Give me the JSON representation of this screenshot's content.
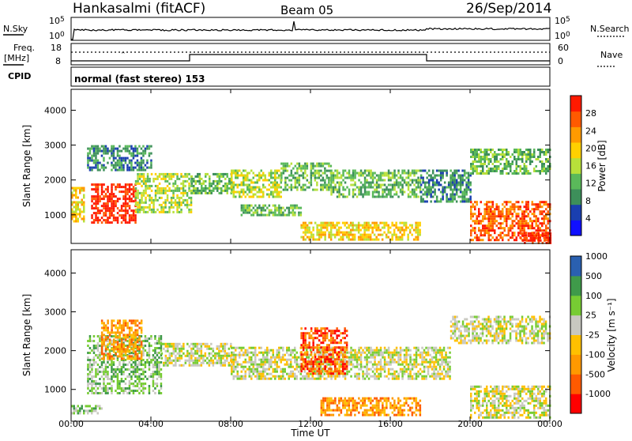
{
  "header": {
    "station": "Hankasalmi (fitACF)",
    "beam": "Beam 05",
    "date": "26/Sep/2014"
  },
  "strip_labels": {
    "nsky": "N.Sky",
    "nsearch": "N.Search",
    "freq_line1": "Freq.",
    "freq_line2": "[MHz]",
    "nave": "Nave",
    "cpid": "CPID",
    "nsky_tick_top": "10^5",
    "nsky_tick_bottom": "10^0",
    "freq_tick_top": "18",
    "freq_tick_bottom": "8",
    "nave_tick_top": "60",
    "nave_tick_bottom": "0",
    "cpid_text": "normal (fast stereo) 153"
  },
  "colors": {
    "power_scale": [
      "#1010ff",
      "#1a3fb0",
      "#3d8f5a",
      "#5ab95a",
      "#b8e03a",
      "#ffd000",
      "#ff9a00",
      "#ff5a00",
      "#ff1a00"
    ],
    "velocity_scale": [
      "#ff0000",
      "#ff5a00",
      "#ff9900",
      "#ffc000",
      "#c8c8c0",
      "#77cc33",
      "#3f9a4a",
      "#2a60b0"
    ],
    "velocity_gray": "#c8c8c0"
  },
  "chart_data": [
    {
      "type": "heatmap",
      "name": "power",
      "ylabel": "Slant Range [km]",
      "xlabel": "Time UT",
      "x_ticks": [
        "00:00",
        "04:00",
        "08:00",
        "12:00",
        "16:00",
        "20:00",
        "00:00"
      ],
      "y_ticks": [
        "1000",
        "2000",
        "3000",
        "4000"
      ],
      "xlim": [
        0,
        24
      ],
      "ylim": [
        180,
        4600
      ],
      "colorbar_label": "Power [dB]",
      "colorbar_ticks": [
        "4",
        "8",
        "12",
        "16",
        "20",
        "24",
        "28"
      ],
      "regions": [
        {
          "t0": 0.0,
          "t1": 0.6,
          "r0": 800,
          "r1": 1800,
          "level": 5
        },
        {
          "t0": 1.0,
          "t1": 3.2,
          "r0": 750,
          "r1": 1900,
          "level": 8
        },
        {
          "t0": 3.2,
          "t1": 6.0,
          "r0": 1100,
          "r1": 2200,
          "level": 4
        },
        {
          "t0": 0.8,
          "t1": 4.0,
          "r0": 2300,
          "r1": 3000,
          "level": 2
        },
        {
          "t0": 6.0,
          "t1": 8.0,
          "r0": 1600,
          "r1": 2200,
          "level": 3
        },
        {
          "t0": 8.0,
          "t1": 10.5,
          "r0": 1500,
          "r1": 2300,
          "level": 4
        },
        {
          "t0": 10.5,
          "t1": 13.0,
          "r0": 1700,
          "r1": 2500,
          "level": 3
        },
        {
          "t0": 13.0,
          "t1": 17.5,
          "r0": 1500,
          "r1": 2300,
          "level": 3
        },
        {
          "t0": 17.5,
          "t1": 20.0,
          "r0": 1400,
          "r1": 2300,
          "level": 2
        },
        {
          "t0": 20.0,
          "t1": 24.0,
          "r0": 2200,
          "r1": 2900,
          "level": 3
        },
        {
          "t0": 8.5,
          "t1": 11.5,
          "r0": 1000,
          "r1": 1300,
          "level": 3
        },
        {
          "t0": 11.5,
          "t1": 17.5,
          "r0": 300,
          "r1": 800,
          "level": 5
        },
        {
          "t0": 20.0,
          "t1": 24.0,
          "r0": 250,
          "r1": 1400,
          "level": 7
        },
        {
          "t0": 22.5,
          "t1": 24.0,
          "r0": 200,
          "r1": 500,
          "level": 8
        }
      ]
    },
    {
      "type": "heatmap",
      "name": "velocity",
      "ylabel": "Slant Range [km]",
      "xlabel": "Time UT",
      "x_ticks": [
        "00:00",
        "04:00",
        "08:00",
        "12:00",
        "16:00",
        "20:00",
        "00:00"
      ],
      "y_ticks": [
        "1000",
        "2000",
        "3000",
        "4000"
      ],
      "xlim": [
        0,
        24
      ],
      "ylim": [
        180,
        4600
      ],
      "colorbar_label": "Velocity  [m s⁻¹]",
      "colorbar_ticks": [
        "-1000",
        "-500",
        "-100",
        "-25",
        "25",
        "100",
        "500",
        "1000"
      ],
      "regions": [
        {
          "t0": 0.8,
          "t1": 4.5,
          "r0": 900,
          "r1": 2400,
          "level": 5
        },
        {
          "t0": 1.5,
          "t1": 3.5,
          "r0": 1800,
          "r1": 2800,
          "level": 2
        },
        {
          "t0": 4.5,
          "t1": 8.0,
          "r0": 1600,
          "r1": 2200,
          "level": 4
        },
        {
          "t0": 8.0,
          "t1": 13.0,
          "r0": 1300,
          "r1": 2100,
          "level": 4
        },
        {
          "t0": 13.0,
          "t1": 19.0,
          "r0": 1300,
          "r1": 2100,
          "level": 4
        },
        {
          "t0": 19.0,
          "t1": 24.0,
          "r0": 2200,
          "r1": 2900,
          "level": 4
        },
        {
          "t0": 11.5,
          "t1": 13.8,
          "r0": 1400,
          "r1": 2600,
          "level": 1
        },
        {
          "t0": 12.5,
          "t1": 17.5,
          "r0": 350,
          "r1": 800,
          "level": 2
        },
        {
          "t0": 20.0,
          "t1": 24.0,
          "r0": 250,
          "r1": 1100,
          "level": 4
        },
        {
          "t0": 0.0,
          "t1": 1.5,
          "r0": 400,
          "r1": 600,
          "level": 5
        }
      ]
    }
  ]
}
